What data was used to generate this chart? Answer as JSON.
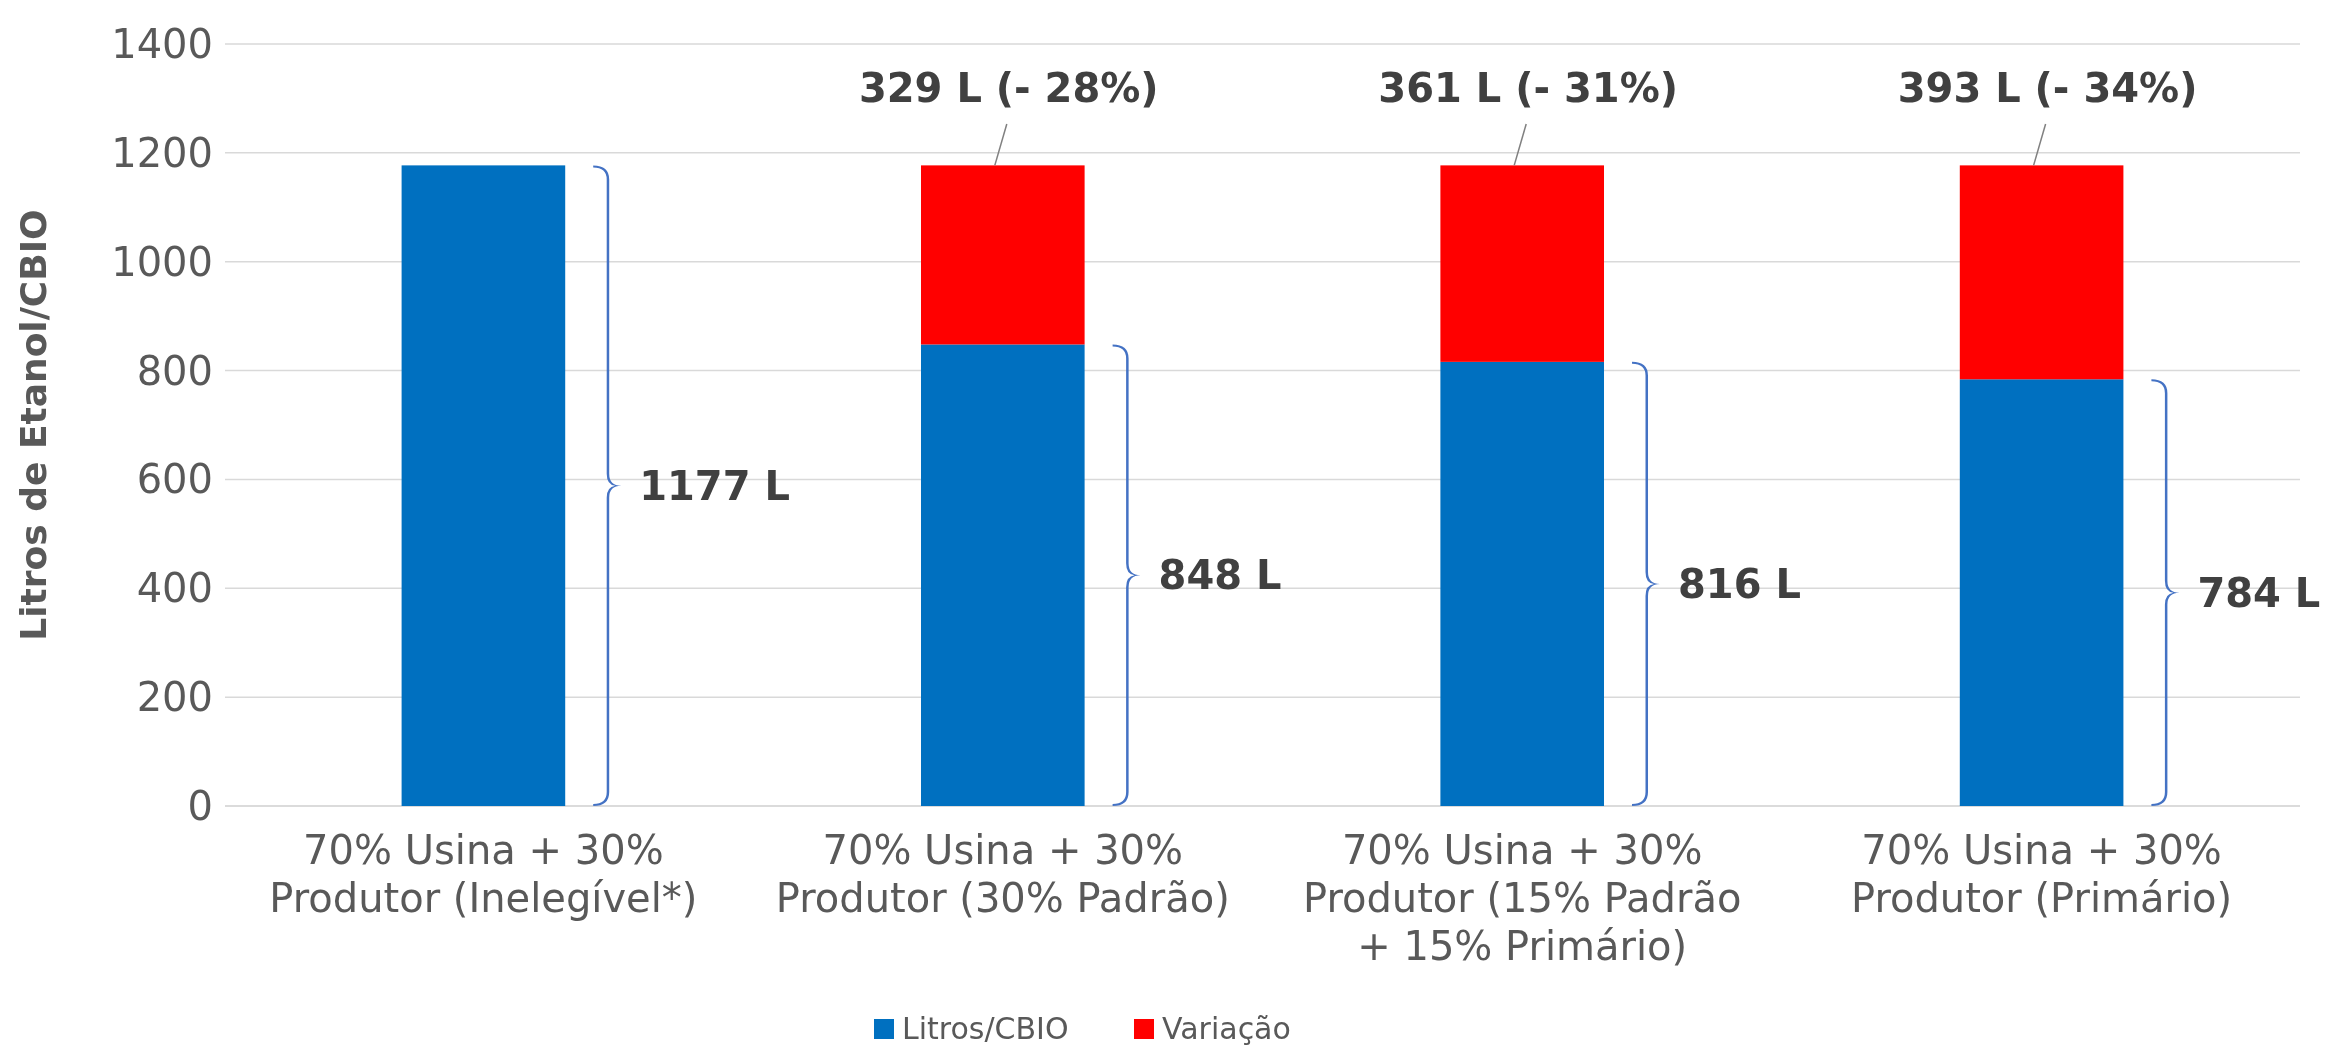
{
  "chart_data": {
    "type": "bar",
    "stacked": true,
    "ylabel": "Litros de Etanol/CBIO",
    "categories": [
      "70% Usina + 30% Produtor (Inelegível*)",
      "70% Usina + 30% Produtor (30% Padrão)",
      "70% Usina + 30% Produtor (15% Padrão + 15% Primário)",
      "70% Usina + 30% Produtor (Primário)"
    ],
    "series": [
      {
        "name": "Litros/CBIO",
        "color": "#0070c0",
        "values": [
          1177,
          848,
          816,
          784
        ]
      },
      {
        "name": "Variação",
        "color": "#ff0000",
        "values": [
          null,
          329,
          361,
          393
        ],
        "value_labels": [
          null,
          "329 L (- 28%)",
          "361 L (- 31%)",
          "393 L (- 34%)"
        ]
      }
    ],
    "annotations": [
      "1177 L",
      "848 L",
      "816 L",
      "784 L"
    ],
    "ylim": [
      0,
      1400
    ],
    "yticks": [
      0,
      200,
      400,
      600,
      800,
      1000,
      1200,
      1400
    ],
    "grid": "y",
    "legend": "bottom"
  }
}
